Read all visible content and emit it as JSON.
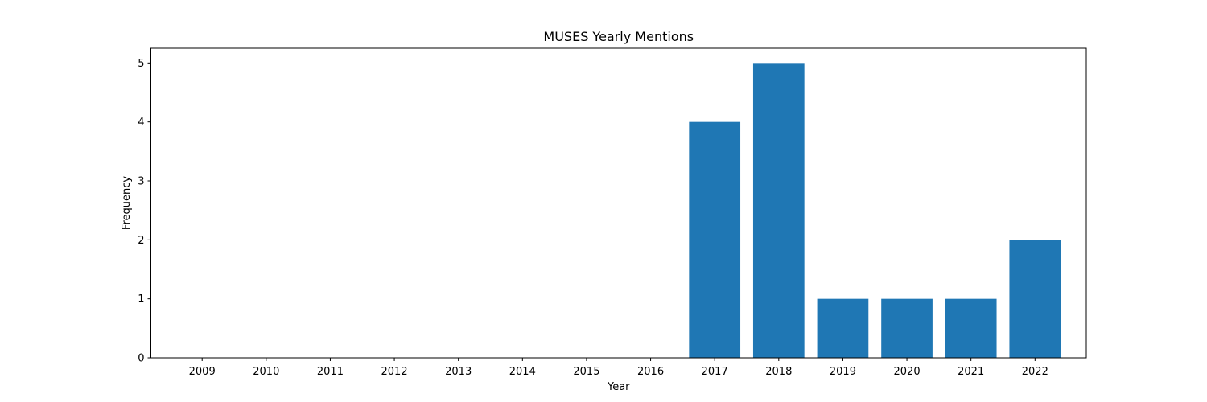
{
  "chart_data": {
    "type": "bar",
    "title": "MUSES Yearly Mentions",
    "xlabel": "Year",
    "ylabel": "Frequency",
    "categories": [
      "2009",
      "2010",
      "2011",
      "2012",
      "2013",
      "2014",
      "2015",
      "2016",
      "2017",
      "2018",
      "2019",
      "2020",
      "2021",
      "2022"
    ],
    "values": [
      0,
      0,
      0,
      0,
      0,
      0,
      0,
      0,
      4,
      5,
      1,
      1,
      1,
      2
    ],
    "ylim": [
      0,
      5.25
    ],
    "yticks": [
      "0",
      "1",
      "2",
      "3",
      "4",
      "5"
    ],
    "bar_color": "#1f77b4",
    "grid": false,
    "legend": "none"
  }
}
